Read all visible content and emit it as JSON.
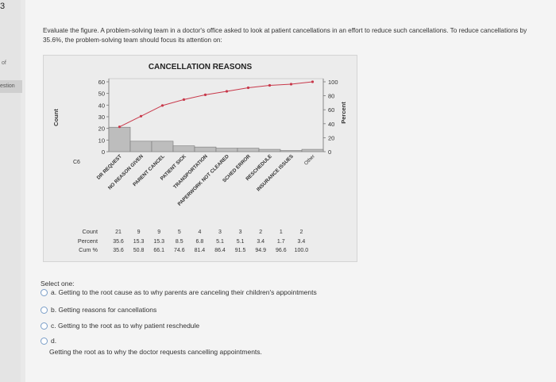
{
  "left_strip": {
    "question_number": "3",
    "of_text": "of",
    "tab_text": "estion"
  },
  "question": {
    "text": "Evaluate the figure.  A problem-solving team in a doctor's office asked to look at patient cancellations in an effort to reduce such cancellations.  To reduce cancellations by 35.6%, the problem-solving team should focus its attention on:"
  },
  "figure": {
    "corner_label": "C6",
    "table_labels": [
      "Count",
      "Percent",
      "Cum %"
    ]
  },
  "chart_data": {
    "type": "bar",
    "title": "CANCELLATION REASONS",
    "ylabel": "Count",
    "y2label": "Percent",
    "ylim": [
      0,
      60
    ],
    "y2lim": [
      0,
      100
    ],
    "yticks": [
      0,
      10,
      20,
      30,
      40,
      50,
      60
    ],
    "y2ticks": [
      0,
      20,
      40,
      60,
      80,
      100
    ],
    "categories": [
      "DR REQUEST",
      "NO REASON GIVEN",
      "PARENT CANCEL",
      "PATIENT SICK",
      "TRANSPORTATION",
      "PAPERWORK NOT CLEARED",
      "SCHED ERROR",
      "RESCHEDULE",
      "INSURANCE ISSUES",
      "Other"
    ],
    "counts": [
      21,
      9,
      9,
      5,
      4,
      3,
      3,
      2,
      1,
      2
    ],
    "percent": [
      "35.6",
      "15.3",
      "15.3",
      "8.5",
      "6.8",
      "5.1",
      "5.1",
      "3.4",
      "1.7",
      "3.4"
    ],
    "cum_percent": [
      "35.6",
      "50.8",
      "66.1",
      "74.6",
      "81.4",
      "86.4",
      "91.5",
      "94.9",
      "96.6",
      "100.0"
    ],
    "bar_color": "#bdbdbd",
    "line_color": "#c8384a"
  },
  "answers": {
    "select_one": "Select one:",
    "options": [
      {
        "letter": "a.",
        "text": "Getting to the root cause as to why parents are canceling their children's appointments"
      },
      {
        "letter": "b.",
        "text": "Getting reasons for cancellations"
      },
      {
        "letter": "c.",
        "text": "Getting to the root as to why patient reschedule"
      },
      {
        "letter": "d.",
        "text": "Getting the root as to why the doctor requests cancelling appointments."
      }
    ]
  }
}
